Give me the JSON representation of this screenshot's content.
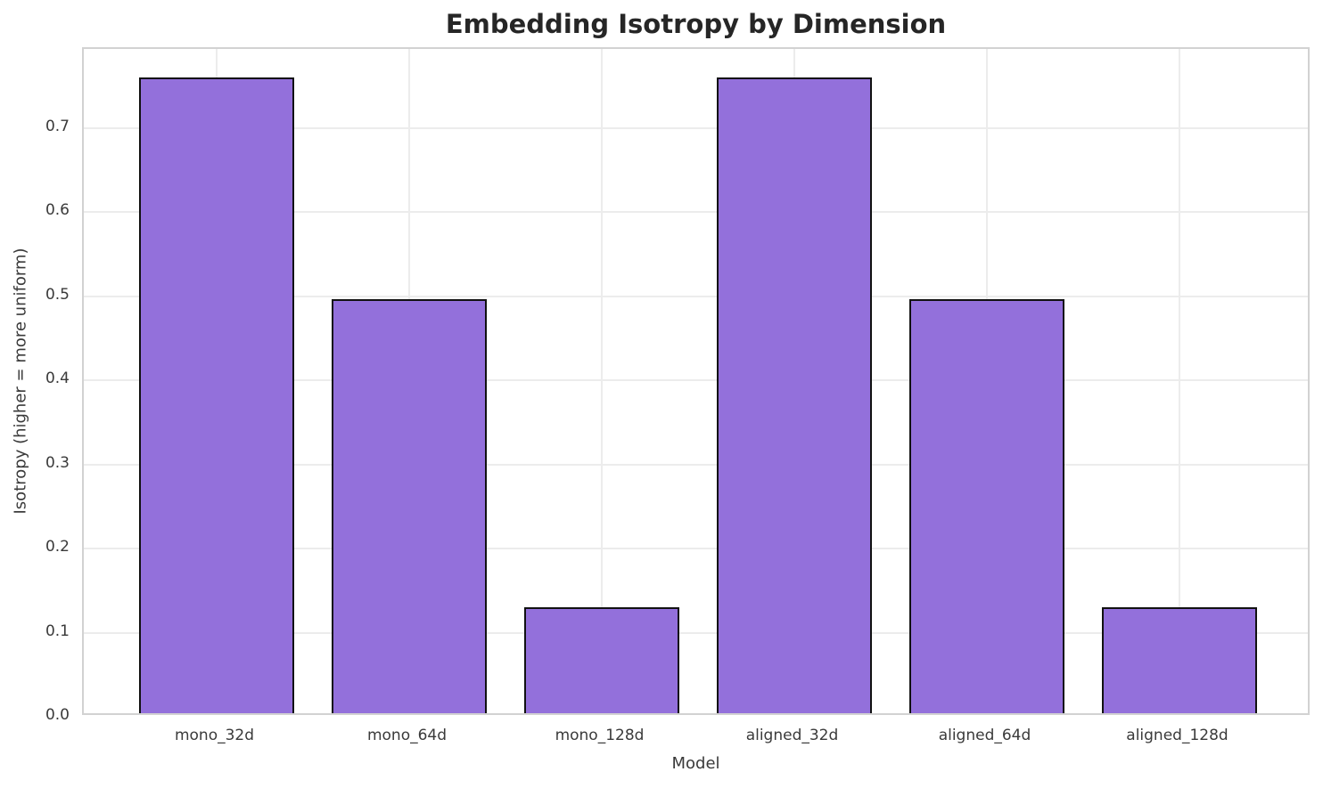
{
  "chart_data": {
    "type": "bar",
    "title": "Embedding Isotropy by Dimension",
    "xlabel": "Model",
    "ylabel": "Isotropy (higher = more uniform)",
    "categories": [
      "mono_32d",
      "mono_64d",
      "mono_128d",
      "aligned_32d",
      "aligned_64d",
      "aligned_128d"
    ],
    "values": [
      0.756,
      0.492,
      0.126,
      0.756,
      0.492,
      0.126
    ],
    "ylim": [
      0,
      0.794
    ],
    "yticks": [
      0.0,
      0.1,
      0.2,
      0.3,
      0.4,
      0.5,
      0.6,
      0.7
    ],
    "ytick_labels": [
      "0.0",
      "0.1",
      "0.2",
      "0.3",
      "0.4",
      "0.5",
      "0.6",
      "0.7"
    ],
    "grid": true,
    "legend": false,
    "bar_color": "#9370DB",
    "bar_edge_color": "#111111",
    "grid_color": "#ececec",
    "spine_color": "#d2d2d2",
    "title_color": "#262626",
    "text_color": "#3a3a3a",
    "background": "#ffffff"
  }
}
